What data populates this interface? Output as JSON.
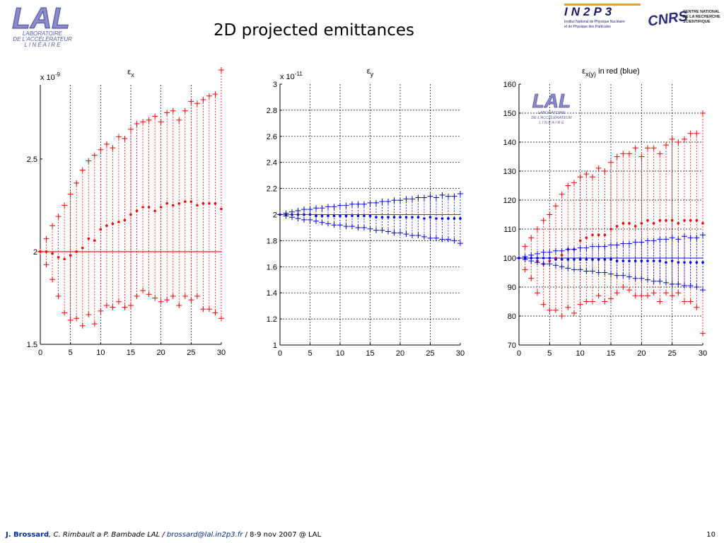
{
  "slide": {
    "title": "2D projected emittances",
    "page_number": "10"
  },
  "logos": {
    "lal_letters": "LAL",
    "lal_line1": "LABORATOIRE",
    "lal_line2": "DE L'ACCÉLÉRATEUR",
    "lal_line3": "L I N É A I R E",
    "in2p3_mark": "IN2P3",
    "in2p3_line1": "Institut National de Physique Nucléaire",
    "in2p3_line2": "et de Physique des Particules",
    "cnrs_mark": "CNRS",
    "cnrs_line1": "CENTRE NATIONAL",
    "cnrs_line2": "DE LA RECHERCHE",
    "cnrs_line3": "SCIENTIFIQUE"
  },
  "footer": {
    "author": "J. Brossard",
    "others": ", C. Rimbault a P. Bambade LAL / ",
    "email": "brossard@lal.in2p3.fr",
    "event": " / 8-9 nov 2007 @ LAL"
  },
  "colors": {
    "red": "#ff0000",
    "blue": "#0000ee",
    "logo_purple": "#5a5aa8",
    "footer_blue": "#002b99"
  },
  "chart_data": [
    {
      "type": "scatter",
      "title_symbol": "ε",
      "title_sub": "x",
      "exponent_label": "x 10",
      "exponent_power": "-9",
      "x_range": [
        0,
        30
      ],
      "y_range": [
        1.5,
        2.9
      ],
      "x_ticks": [
        0,
        5,
        10,
        15,
        20,
        25,
        30
      ],
      "y_ticks": [
        1.5,
        2,
        2.5
      ],
      "grid": "vertical dashed",
      "reference_line": {
        "value": 2.0,
        "color": "red"
      },
      "series": [
        {
          "style": "upper envelope (+), red",
          "x": [
            0,
            1,
            2,
            3,
            4,
            5,
            6,
            7,
            8,
            9,
            10,
            11,
            12,
            13,
            14,
            15,
            16,
            17,
            18,
            19,
            20,
            21,
            22,
            23,
            24,
            25,
            26,
            27,
            28,
            29,
            30
          ],
          "values": [
            2.0,
            2.07,
            2.14,
            2.19,
            2.25,
            2.31,
            2.37,
            2.44,
            2.49,
            2.52,
            2.55,
            2.58,
            2.56,
            2.62,
            2.61,
            2.66,
            2.69,
            2.7,
            2.71,
            2.73,
            2.7,
            2.75,
            2.76,
            2.71,
            2.76,
            2.81,
            2.8,
            2.82,
            2.84,
            2.85,
            2.98
          ]
        },
        {
          "style": "mean (dots), red",
          "x": [
            0,
            1,
            2,
            3,
            4,
            5,
            6,
            7,
            8,
            9,
            10,
            11,
            12,
            13,
            14,
            15,
            16,
            17,
            18,
            19,
            20,
            21,
            22,
            23,
            24,
            25,
            26,
            27,
            28,
            29,
            30
          ],
          "values": [
            2.0,
            2.0,
            1.99,
            1.97,
            1.96,
            1.98,
            2.0,
            2.02,
            2.07,
            2.06,
            2.12,
            2.14,
            2.15,
            2.16,
            2.17,
            2.2,
            2.22,
            2.24,
            2.24,
            2.22,
            2.24,
            2.26,
            2.25,
            2.26,
            2.27,
            2.27,
            2.25,
            2.26,
            2.26,
            2.26,
            2.23
          ]
        },
        {
          "style": "lower envelope (+), red",
          "x": [
            0,
            1,
            2,
            3,
            4,
            5,
            6,
            7,
            8,
            9,
            10,
            11,
            12,
            13,
            14,
            15,
            16,
            17,
            18,
            19,
            20,
            21,
            22,
            23,
            24,
            25,
            26,
            27,
            28,
            29,
            30
          ],
          "values": [
            2.0,
            1.93,
            1.85,
            1.76,
            1.67,
            1.63,
            1.64,
            1.6,
            1.66,
            1.61,
            1.68,
            1.71,
            1.7,
            1.73,
            1.7,
            1.71,
            1.76,
            1.79,
            1.77,
            1.75,
            1.73,
            1.74,
            1.76,
            1.71,
            1.76,
            1.74,
            1.76,
            1.69,
            1.69,
            1.67,
            1.64
          ]
        }
      ]
    },
    {
      "type": "scatter",
      "title_symbol": "ε",
      "title_sub": "y",
      "exponent_label": "x 10",
      "exponent_power": "-11",
      "x_range": [
        0,
        30
      ],
      "y_range": [
        1,
        3
      ],
      "x_ticks": [
        0,
        5,
        10,
        15,
        20,
        25,
        30
      ],
      "y_ticks": [
        1,
        1.2,
        1.4,
        1.6,
        1.8,
        2,
        2.2,
        2.4,
        2.6,
        2.8,
        3
      ],
      "grid": "dashed both",
      "reference_line": {
        "value": 2.0,
        "color": "red"
      },
      "series": [
        {
          "style": "upper envelope (+), blue",
          "x": [
            0,
            1,
            2,
            3,
            4,
            5,
            6,
            7,
            8,
            9,
            10,
            11,
            12,
            13,
            14,
            15,
            16,
            17,
            18,
            19,
            20,
            21,
            22,
            23,
            24,
            25,
            26,
            27,
            28,
            29,
            30
          ],
          "values": [
            2.0,
            2.01,
            2.02,
            2.03,
            2.04,
            2.04,
            2.05,
            2.05,
            2.06,
            2.06,
            2.07,
            2.07,
            2.08,
            2.08,
            2.08,
            2.09,
            2.09,
            2.1,
            2.1,
            2.11,
            2.11,
            2.12,
            2.12,
            2.13,
            2.13,
            2.14,
            2.13,
            2.15,
            2.14,
            2.14,
            2.16
          ]
        },
        {
          "style": "mean (dots), blue",
          "x": [
            0,
            1,
            2,
            3,
            4,
            5,
            6,
            7,
            8,
            9,
            10,
            11,
            12,
            13,
            14,
            15,
            16,
            17,
            18,
            19,
            20,
            21,
            22,
            23,
            24,
            25,
            26,
            27,
            28,
            29,
            30
          ],
          "values": [
            2.0,
            2.0,
            2.0,
            2.0,
            2.0,
            2.0,
            1.99,
            1.99,
            1.99,
            1.99,
            1.99,
            1.99,
            1.99,
            1.99,
            1.99,
            1.99,
            1.98,
            1.98,
            1.98,
            1.98,
            1.98,
            1.98,
            1.98,
            1.98,
            1.97,
            1.98,
            1.97,
            1.97,
            1.97,
            1.97,
            1.97
          ]
        },
        {
          "style": "lower envelope (+), blue",
          "x": [
            0,
            1,
            2,
            3,
            4,
            5,
            6,
            7,
            8,
            9,
            10,
            11,
            12,
            13,
            14,
            15,
            16,
            17,
            18,
            19,
            20,
            21,
            22,
            23,
            24,
            25,
            26,
            27,
            28,
            29,
            30
          ],
          "values": [
            2.0,
            1.99,
            1.98,
            1.97,
            1.96,
            1.96,
            1.95,
            1.94,
            1.93,
            1.92,
            1.92,
            1.91,
            1.91,
            1.9,
            1.9,
            1.89,
            1.88,
            1.88,
            1.87,
            1.86,
            1.86,
            1.85,
            1.84,
            1.84,
            1.83,
            1.82,
            1.82,
            1.81,
            1.81,
            1.8,
            1.78
          ]
        }
      ]
    },
    {
      "type": "scatter",
      "title_symbol": "ε",
      "title_sub": "x(y)",
      "title_rest": " in red (blue)",
      "x_range": [
        0,
        30
      ],
      "y_range": [
        70,
        160
      ],
      "x_ticks": [
        0,
        5,
        10,
        15,
        20,
        25,
        30
      ],
      "y_ticks": [
        70,
        80,
        90,
        100,
        110,
        120,
        130,
        140,
        150,
        160
      ],
      "grid": "dashed both",
      "reference_line": {
        "value": 100,
        "color": "blue"
      },
      "series": [
        {
          "style": "x upper envelope (+), red",
          "x": [
            0,
            1,
            2,
            3,
            4,
            5,
            6,
            7,
            8,
            9,
            10,
            11,
            12,
            13,
            14,
            15,
            16,
            17,
            18,
            19,
            20,
            21,
            22,
            23,
            24,
            25,
            26,
            27,
            28,
            29,
            30
          ],
          "values": [
            100,
            104,
            107,
            110,
            113,
            115,
            118,
            122,
            125,
            126,
            128,
            129,
            128,
            131,
            130,
            133,
            135,
            136,
            136,
            138,
            135,
            138,
            138,
            136,
            139,
            141,
            140,
            141,
            143,
            143,
            150
          ]
        },
        {
          "style": "x mean (dots), red",
          "x": [
            0,
            1,
            2,
            3,
            4,
            5,
            6,
            7,
            8,
            9,
            10,
            11,
            12,
            13,
            14,
            15,
            16,
            17,
            18,
            19,
            20,
            21,
            22,
            23,
            24,
            25,
            26,
            27,
            28,
            29,
            30
          ],
          "values": [
            100,
            100,
            100,
            99,
            98,
            99,
            100,
            101,
            103,
            103,
            106,
            107,
            108,
            108,
            108,
            110,
            111,
            112,
            112,
            111,
            112,
            113,
            112,
            113,
            113,
            113,
            112,
            113,
            113,
            113,
            112
          ]
        },
        {
          "style": "x lower envelope (+), red",
          "x": [
            0,
            1,
            2,
            3,
            4,
            5,
            6,
            7,
            8,
            9,
            10,
            11,
            12,
            13,
            14,
            15,
            16,
            17,
            18,
            19,
            20,
            21,
            22,
            23,
            24,
            25,
            26,
            27,
            28,
            29,
            30
          ],
          "values": [
            100,
            96,
            93,
            88,
            84,
            82,
            82,
            80,
            83,
            81,
            84,
            85,
            85,
            87,
            85,
            86,
            88,
            90,
            89,
            87,
            87,
            87,
            88,
            85,
            88,
            87,
            88,
            85,
            85,
            83,
            74
          ]
        },
        {
          "style": "y upper envelope (+), blue",
          "x": [
            0,
            1,
            2,
            3,
            4,
            5,
            6,
            7,
            8,
            9,
            10,
            11,
            12,
            13,
            14,
            15,
            16,
            17,
            18,
            19,
            20,
            21,
            22,
            23,
            24,
            25,
            26,
            27,
            28,
            29,
            30
          ],
          "values": [
            100,
            100.5,
            101,
            101.5,
            102,
            102,
            102.5,
            102.5,
            103,
            103,
            103.5,
            103.5,
            104,
            104,
            104,
            104.5,
            104.5,
            105,
            105,
            105.5,
            105.5,
            106,
            106,
            106.5,
            106.5,
            107,
            106.5,
            107.5,
            107,
            107,
            108
          ]
        },
        {
          "style": "y mean (dots), blue",
          "x": [
            0,
            1,
            2,
            3,
            4,
            5,
            6,
            7,
            8,
            9,
            10,
            11,
            12,
            13,
            14,
            15,
            16,
            17,
            18,
            19,
            20,
            21,
            22,
            23,
            24,
            25,
            26,
            27,
            28,
            29,
            30
          ],
          "values": [
            100,
            100,
            100,
            100,
            100,
            100,
            99.5,
            99.5,
            99.5,
            99.5,
            99.5,
            99.5,
            99.5,
            99.5,
            99.5,
            99.5,
            99,
            99,
            99,
            99,
            99,
            99,
            99,
            99,
            98.5,
            99,
            98.5,
            98.5,
            98.5,
            98.5,
            98.5
          ]
        },
        {
          "style": "y lower envelope (+), blue",
          "x": [
            0,
            1,
            2,
            3,
            4,
            5,
            6,
            7,
            8,
            9,
            10,
            11,
            12,
            13,
            14,
            15,
            16,
            17,
            18,
            19,
            20,
            21,
            22,
            23,
            24,
            25,
            26,
            27,
            28,
            29,
            30
          ],
          "values": [
            100,
            99.5,
            99,
            98.5,
            98,
            98,
            97.5,
            97,
            96.5,
            96,
            96,
            95.5,
            95.5,
            95,
            95,
            94.5,
            94,
            94,
            93.5,
            93,
            93,
            92.5,
            92,
            92,
            91.5,
            91,
            91,
            90.5,
            90.5,
            90,
            89
          ]
        }
      ]
    }
  ]
}
